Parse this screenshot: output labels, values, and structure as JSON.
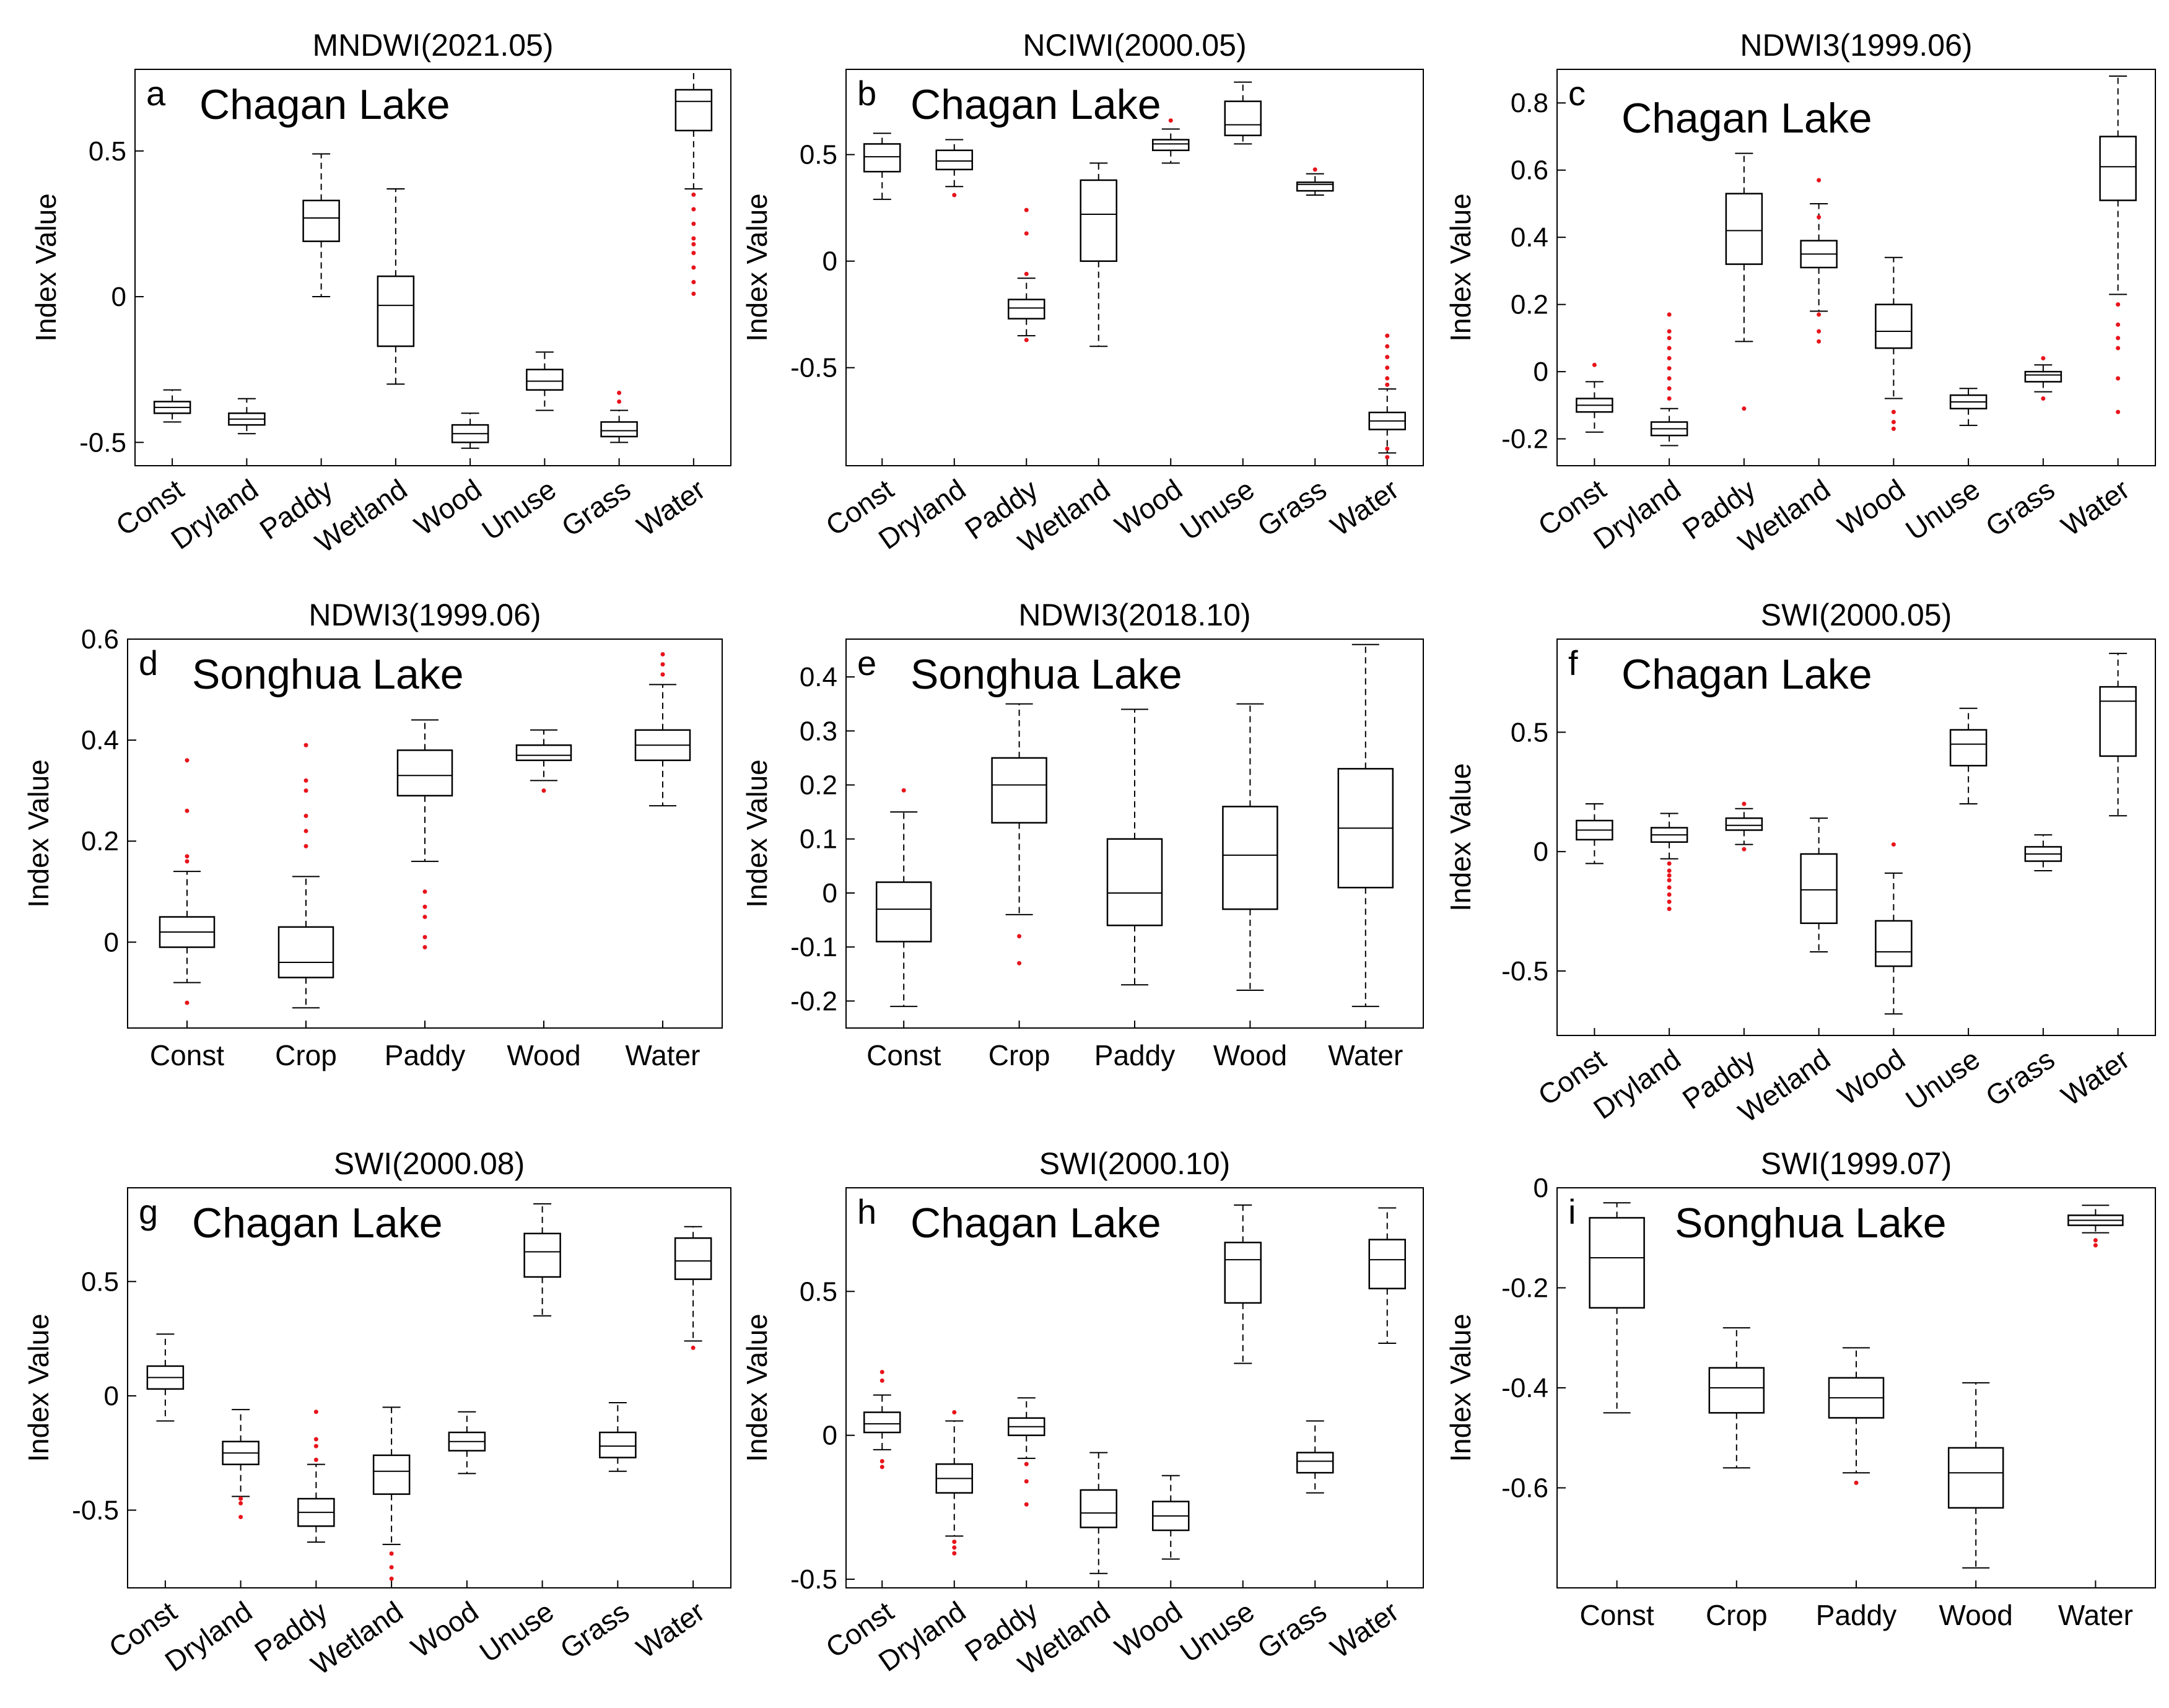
{
  "figure": {
    "ylabel": "Index Value"
  },
  "chart_data": [
    {
      "type": "box",
      "id": "a",
      "title": "MNDWI(2021.05)",
      "letter": "a",
      "lake": "Chagan Lake",
      "ylabel": "Index Value",
      "ylim": [
        -0.58,
        0.78
      ],
      "yticks": [
        -0.5,
        0,
        0.5
      ],
      "ytick_labels": [
        "-0.5",
        "0",
        "0.5"
      ],
      "categories": [
        "Const",
        "Dryland",
        "Paddy",
        "Wetland",
        "Wood",
        "Unuse",
        "Grass",
        "Water"
      ],
      "boxes": [
        {
          "wl": -0.43,
          "q1": -0.4,
          "med": -0.38,
          "q3": -0.36,
          "wh": -0.32,
          "out": []
        },
        {
          "wl": -0.47,
          "q1": -0.44,
          "med": -0.42,
          "q3": -0.4,
          "wh": -0.35,
          "out": []
        },
        {
          "wl": 0.0,
          "q1": 0.19,
          "med": 0.27,
          "q3": 0.33,
          "wh": 0.49,
          "out": []
        },
        {
          "wl": -0.3,
          "q1": -0.17,
          "med": -0.03,
          "q3": 0.07,
          "wh": 0.37,
          "out": []
        },
        {
          "wl": -0.52,
          "q1": -0.5,
          "med": -0.47,
          "q3": -0.44,
          "wh": -0.4,
          "out": []
        },
        {
          "wl": -0.39,
          "q1": -0.32,
          "med": -0.29,
          "q3": -0.25,
          "wh": -0.19,
          "out": []
        },
        {
          "wl": -0.5,
          "q1": -0.48,
          "med": -0.46,
          "q3": -0.43,
          "wh": -0.39,
          "out": [
            -0.33,
            -0.36
          ]
        },
        {
          "wl": 0.37,
          "q1": 0.57,
          "med": 0.67,
          "q3": 0.71,
          "wh": 0.78,
          "out": [
            0.35,
            0.3,
            0.25,
            0.2,
            0.18,
            0.15,
            0.1,
            0.05,
            0.01
          ]
        }
      ]
    },
    {
      "type": "box",
      "id": "b",
      "title": "NCIWI(2000.05)",
      "letter": "b",
      "lake": "Chagan Lake",
      "ylabel": "Index Value",
      "ylim": [
        -0.96,
        0.9
      ],
      "yticks": [
        -0.5,
        0,
        0.5
      ],
      "ytick_labels": [
        "-0.5",
        "0",
        "0.5"
      ],
      "categories": [
        "Const",
        "Dryland",
        "Paddy",
        "Wetland",
        "Wood",
        "Unuse",
        "Grass",
        "Water"
      ],
      "boxes": [
        {
          "wl": 0.29,
          "q1": 0.42,
          "med": 0.49,
          "q3": 0.55,
          "wh": 0.6,
          "out": []
        },
        {
          "wl": 0.35,
          "q1": 0.43,
          "med": 0.47,
          "q3": 0.52,
          "wh": 0.57,
          "out": [
            0.31
          ]
        },
        {
          "wl": -0.35,
          "q1": -0.27,
          "med": -0.22,
          "q3": -0.18,
          "wh": -0.08,
          "out": [
            0.24,
            0.13,
            -0.06,
            -0.37
          ]
        },
        {
          "wl": -0.4,
          "q1": 0.0,
          "med": 0.22,
          "q3": 0.38,
          "wh": 0.46,
          "out": []
        },
        {
          "wl": 0.46,
          "q1": 0.52,
          "med": 0.55,
          "q3": 0.57,
          "wh": 0.62,
          "out": [
            0.66
          ]
        },
        {
          "wl": 0.55,
          "q1": 0.59,
          "med": 0.64,
          "q3": 0.75,
          "wh": 0.84,
          "out": []
        },
        {
          "wl": 0.31,
          "q1": 0.33,
          "med": 0.36,
          "q3": 0.37,
          "wh": 0.41,
          "out": [
            0.43
          ]
        },
        {
          "wl": -0.9,
          "q1": -0.79,
          "med": -0.75,
          "q3": -0.71,
          "wh": -0.6,
          "out": [
            -0.35,
            -0.4,
            -0.45,
            -0.5,
            -0.55,
            -0.58,
            -0.88,
            -0.92
          ]
        }
      ]
    },
    {
      "type": "box",
      "id": "c",
      "title": "NDWI3(1999.06)",
      "letter": "c",
      "lake": "Chagan Lake",
      "ylabel": "Index Value",
      "ylim": [
        -0.28,
        0.9
      ],
      "yticks": [
        -0.2,
        0,
        0.2,
        0.4,
        0.6,
        0.8
      ],
      "ytick_labels": [
        "-0.2",
        "0",
        "0.2",
        "0.4",
        "0.6",
        "0.8"
      ],
      "categories": [
        "Const",
        "Dryland",
        "Paddy",
        "Wetland",
        "Wood",
        "Unuse",
        "Grass",
        "Water"
      ],
      "boxes": [
        {
          "wl": -0.18,
          "q1": -0.12,
          "med": -0.1,
          "q3": -0.08,
          "wh": -0.03,
          "out": [
            0.02
          ]
        },
        {
          "wl": -0.22,
          "q1": -0.19,
          "med": -0.17,
          "q3": -0.15,
          "wh": -0.11,
          "out": [
            0.17,
            0.12,
            0.1,
            0.07,
            0.04,
            0.01,
            -0.02,
            -0.05,
            -0.08
          ]
        },
        {
          "wl": 0.09,
          "q1": 0.32,
          "med": 0.42,
          "q3": 0.53,
          "wh": 0.65,
          "out": [
            -0.11
          ]
        },
        {
          "wl": 0.18,
          "q1": 0.31,
          "med": 0.35,
          "q3": 0.39,
          "wh": 0.5,
          "out": [
            0.57,
            0.46,
            0.17,
            0.12,
            0.09
          ]
        },
        {
          "wl": -0.08,
          "q1": 0.07,
          "med": 0.12,
          "q3": 0.2,
          "wh": 0.34,
          "out": [
            -0.12,
            -0.15,
            -0.17
          ]
        },
        {
          "wl": -0.16,
          "q1": -0.11,
          "med": -0.09,
          "q3": -0.07,
          "wh": -0.05,
          "out": []
        },
        {
          "wl": -0.06,
          "q1": -0.03,
          "med": -0.01,
          "q3": 0.0,
          "wh": 0.02,
          "out": [
            0.04,
            -0.08
          ]
        },
        {
          "wl": 0.23,
          "q1": 0.51,
          "med": 0.61,
          "q3": 0.7,
          "wh": 0.88,
          "out": [
            0.2,
            0.14,
            0.1,
            0.07,
            -0.02,
            -0.12
          ]
        }
      ]
    },
    {
      "type": "box",
      "id": "d",
      "title": "NDWI3(1999.06)",
      "letter": "d",
      "lake": "Songhua Lake",
      "ylabel": "Index Value",
      "ylim": [
        -0.17,
        0.6
      ],
      "yticks": [
        0,
        0.2,
        0.4,
        0.6
      ],
      "ytick_labels": [
        "0",
        "0.2",
        "0.4",
        "0.6"
      ],
      "categories": [
        "Const",
        "Crop",
        "Paddy",
        "Wood",
        "Water"
      ],
      "boxes": [
        {
          "wl": -0.08,
          "q1": -0.01,
          "med": 0.02,
          "q3": 0.05,
          "wh": 0.14,
          "out": [
            0.36,
            0.26,
            0.17,
            0.16,
            -0.12
          ]
        },
        {
          "wl": -0.13,
          "q1": -0.07,
          "med": -0.04,
          "q3": 0.03,
          "wh": 0.13,
          "out": [
            0.39,
            0.32,
            0.3,
            0.25,
            0.22,
            0.19
          ]
        },
        {
          "wl": 0.16,
          "q1": 0.29,
          "med": 0.33,
          "q3": 0.38,
          "wh": 0.44,
          "out": [
            0.1,
            0.07,
            0.05,
            0.01,
            -0.01
          ]
        },
        {
          "wl": 0.32,
          "q1": 0.36,
          "med": 0.37,
          "q3": 0.39,
          "wh": 0.42,
          "out": [
            0.3
          ]
        },
        {
          "wl": 0.27,
          "q1": 0.36,
          "med": 0.39,
          "q3": 0.42,
          "wh": 0.51,
          "out": [
            0.57,
            0.55,
            0.53
          ]
        }
      ]
    },
    {
      "type": "box",
      "id": "e",
      "title": "NDWI3(2018.10)",
      "letter": "e",
      "lake": "Songhua Lake",
      "ylabel": "Index Value",
      "ylim": [
        -0.25,
        0.47
      ],
      "yticks": [
        -0.2,
        -0.1,
        0,
        0.1,
        0.2,
        0.3,
        0.4
      ],
      "ytick_labels": [
        "-0.2",
        "-0.1",
        "0",
        "0.1",
        "0.2",
        "0.3",
        "0.4"
      ],
      "categories": [
        "Const",
        "Crop",
        "Paddy",
        "Wood",
        "Water"
      ],
      "boxes": [
        {
          "wl": -0.21,
          "q1": -0.09,
          "med": -0.03,
          "q3": 0.02,
          "wh": 0.15,
          "out": [
            0.19
          ]
        },
        {
          "wl": -0.04,
          "q1": 0.13,
          "med": 0.2,
          "q3": 0.25,
          "wh": 0.35,
          "out": [
            -0.08,
            -0.13
          ]
        },
        {
          "wl": -0.17,
          "q1": -0.06,
          "med": 0.0,
          "q3": 0.1,
          "wh": 0.34,
          "out": []
        },
        {
          "wl": -0.18,
          "q1": -0.03,
          "med": 0.07,
          "q3": 0.16,
          "wh": 0.35,
          "out": []
        },
        {
          "wl": -0.21,
          "q1": 0.01,
          "med": 0.12,
          "q3": 0.23,
          "wh": 0.46,
          "out": []
        }
      ]
    },
    {
      "type": "box",
      "id": "f",
      "title": "SWI(2000.05)",
      "letter": "f",
      "lake": "Chagan Lake",
      "ylabel": "Index Value",
      "ylim": [
        -0.77,
        0.89
      ],
      "yticks": [
        -0.5,
        0,
        0.5
      ],
      "ytick_labels": [
        "-0.5",
        "0",
        "0.5"
      ],
      "categories": [
        "Const",
        "Dryland",
        "Paddy",
        "Wetland",
        "Wood",
        "Unuse",
        "Grass",
        "Water"
      ],
      "boxes": [
        {
          "wl": -0.05,
          "q1": 0.05,
          "med": 0.09,
          "q3": 0.13,
          "wh": 0.2,
          "out": []
        },
        {
          "wl": -0.03,
          "q1": 0.04,
          "med": 0.07,
          "q3": 0.1,
          "wh": 0.16,
          "out": [
            -0.05,
            -0.08,
            -0.1,
            -0.12,
            -0.15,
            -0.18,
            -0.21,
            -0.24
          ]
        },
        {
          "wl": 0.03,
          "q1": 0.09,
          "med": 0.11,
          "q3": 0.14,
          "wh": 0.18,
          "out": [
            0.2,
            0.01
          ]
        },
        {
          "wl": -0.42,
          "q1": -0.3,
          "med": -0.16,
          "q3": -0.01,
          "wh": 0.14,
          "out": []
        },
        {
          "wl": -0.68,
          "q1": -0.48,
          "med": -0.42,
          "q3": -0.29,
          "wh": -0.09,
          "out": [
            0.03
          ]
        },
        {
          "wl": 0.2,
          "q1": 0.36,
          "med": 0.45,
          "q3": 0.51,
          "wh": 0.6,
          "out": []
        },
        {
          "wl": -0.08,
          "q1": -0.04,
          "med": -0.01,
          "q3": 0.02,
          "wh": 0.07,
          "out": []
        },
        {
          "wl": 0.15,
          "q1": 0.4,
          "med": 0.63,
          "q3": 0.69,
          "wh": 0.83,
          "out": []
        }
      ]
    },
    {
      "type": "box",
      "id": "g",
      "title": "SWI(2000.08)",
      "letter": "g",
      "lake": "Chagan Lake",
      "ylabel": "Index Value",
      "ylim": [
        -0.84,
        0.91
      ],
      "yticks": [
        -0.5,
        0,
        0.5
      ],
      "ytick_labels": [
        "-0.5",
        "0",
        "0.5"
      ],
      "categories": [
        "Const",
        "Dryland",
        "Paddy",
        "Wetland",
        "Wood",
        "Unuse",
        "Grass",
        "Water"
      ],
      "boxes": [
        {
          "wl": -0.11,
          "q1": 0.03,
          "med": 0.08,
          "q3": 0.13,
          "wh": 0.27,
          "out": []
        },
        {
          "wl": -0.44,
          "q1": -0.3,
          "med": -0.25,
          "q3": -0.2,
          "wh": -0.06,
          "out": [
            -0.45,
            -0.47,
            -0.53
          ]
        },
        {
          "wl": -0.64,
          "q1": -0.57,
          "med": -0.51,
          "q3": -0.45,
          "wh": -0.3,
          "out": [
            -0.07,
            -0.19,
            -0.22,
            -0.28
          ]
        },
        {
          "wl": -0.65,
          "q1": -0.43,
          "med": -0.33,
          "q3": -0.26,
          "wh": -0.05,
          "out": [
            -0.69,
            -0.75,
            -0.8
          ]
        },
        {
          "wl": -0.34,
          "q1": -0.24,
          "med": -0.2,
          "q3": -0.16,
          "wh": -0.07,
          "out": []
        },
        {
          "wl": 0.35,
          "q1": 0.52,
          "med": 0.63,
          "q3": 0.71,
          "wh": 0.84,
          "out": []
        },
        {
          "wl": -0.33,
          "q1": -0.27,
          "med": -0.22,
          "q3": -0.16,
          "wh": -0.03,
          "out": []
        },
        {
          "wl": 0.24,
          "q1": 0.51,
          "med": 0.59,
          "q3": 0.69,
          "wh": 0.74,
          "out": [
            0.21
          ]
        }
      ]
    },
    {
      "type": "box",
      "id": "h",
      "title": "SWI(2000.10)",
      "letter": "h",
      "lake": "Chagan Lake",
      "ylabel": "Index Value",
      "ylim": [
        -0.53,
        0.86
      ],
      "yticks": [
        -0.5,
        0,
        0.5
      ],
      "ytick_labels": [
        "-0.5",
        "0",
        "0.5"
      ],
      "categories": [
        "Const",
        "Dryland",
        "Paddy",
        "Wetland",
        "Wood",
        "Unuse",
        "Grass",
        "Water"
      ],
      "boxes": [
        {
          "wl": -0.05,
          "q1": 0.01,
          "med": 0.04,
          "q3": 0.08,
          "wh": 0.14,
          "out": [
            0.22,
            0.19,
            -0.09,
            -0.11
          ]
        },
        {
          "wl": -0.35,
          "q1": -0.2,
          "med": -0.15,
          "q3": -0.1,
          "wh": 0.05,
          "out": [
            0.08,
            -0.37,
            -0.39,
            -0.41
          ]
        },
        {
          "wl": -0.08,
          "q1": 0.0,
          "med": 0.03,
          "q3": 0.06,
          "wh": 0.13,
          "out": [
            -0.1,
            -0.16,
            -0.24
          ]
        },
        {
          "wl": -0.48,
          "q1": -0.32,
          "med": -0.27,
          "q3": -0.19,
          "wh": -0.06,
          "out": []
        },
        {
          "wl": -0.43,
          "q1": -0.33,
          "med": -0.28,
          "q3": -0.23,
          "wh": -0.14,
          "out": []
        },
        {
          "wl": 0.25,
          "q1": 0.46,
          "med": 0.61,
          "q3": 0.67,
          "wh": 0.8,
          "out": []
        },
        {
          "wl": -0.2,
          "q1": -0.13,
          "med": -0.09,
          "q3": -0.06,
          "wh": 0.05,
          "out": []
        },
        {
          "wl": 0.32,
          "q1": 0.51,
          "med": 0.61,
          "q3": 0.68,
          "wh": 0.79,
          "out": []
        }
      ]
    },
    {
      "type": "box",
      "id": "i",
      "title": "SWI(1999.07)",
      "letter": "i",
      "lake": "Songhua Lake",
      "ylabel": "Index Value",
      "ylim": [
        -0.8,
        0.0
      ],
      "yticks": [
        -0.6,
        -0.4,
        -0.2,
        0
      ],
      "ytick_labels": [
        "-0.6",
        "-0.4",
        "-0.2",
        "0"
      ],
      "categories": [
        "Const",
        "Crop",
        "Paddy",
        "Wood",
        "Water"
      ],
      "boxes": [
        {
          "wl": -0.45,
          "q1": -0.24,
          "med": -0.14,
          "q3": -0.06,
          "wh": -0.03,
          "out": []
        },
        {
          "wl": -0.56,
          "q1": -0.45,
          "med": -0.4,
          "q3": -0.36,
          "wh": -0.28,
          "out": []
        },
        {
          "wl": -0.57,
          "q1": -0.46,
          "med": -0.42,
          "q3": -0.38,
          "wh": -0.32,
          "out": [
            -0.59
          ]
        },
        {
          "wl": -0.76,
          "q1": -0.64,
          "med": -0.57,
          "q3": -0.52,
          "wh": -0.39,
          "out": []
        },
        {
          "wl": -0.09,
          "q1": -0.075,
          "med": -0.065,
          "q3": -0.055,
          "wh": -0.035,
          "out": [
            -0.105,
            -0.115
          ]
        }
      ]
    }
  ]
}
